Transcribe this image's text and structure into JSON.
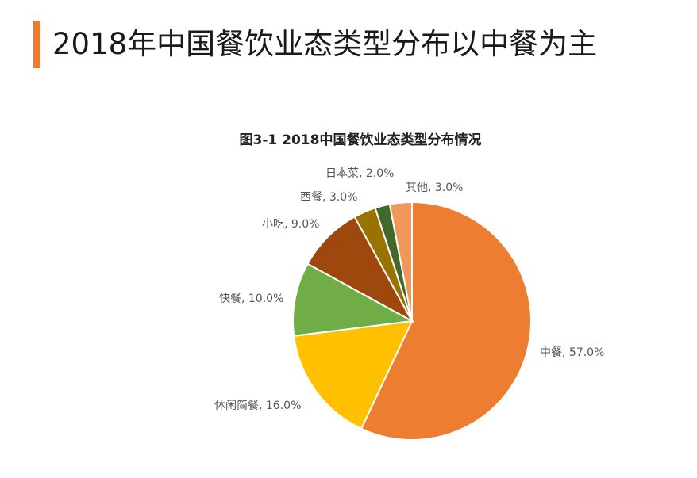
{
  "page_title": "2018年中国餐饮业态类型分布以中餐为主",
  "chart_data": {
    "type": "pie",
    "title": "图3-1  2018中国餐饮业态类型分布情况",
    "categories": [
      "中餐",
      "休闲简餐",
      "快餐",
      "小吃",
      "西餐",
      "日本菜",
      "其他"
    ],
    "values": [
      57.0,
      16.0,
      10.0,
      9.0,
      3.0,
      2.0,
      3.0
    ],
    "labels": [
      "中餐, 57.0%",
      "休闲简餐, 16.0%",
      "快餐, 10.0%",
      "小吃, 9.0%",
      "西餐, 3.0%",
      "日本菜, 2.0%",
      "其他, 3.0%"
    ],
    "colors": [
      "#ed7d31",
      "#ffc000",
      "#70ad47",
      "#9e480e",
      "#997300",
      "#43682b",
      "#f1975a"
    ],
    "start_angle_deg": 0,
    "direction": "clockwise",
    "legend": "none"
  }
}
